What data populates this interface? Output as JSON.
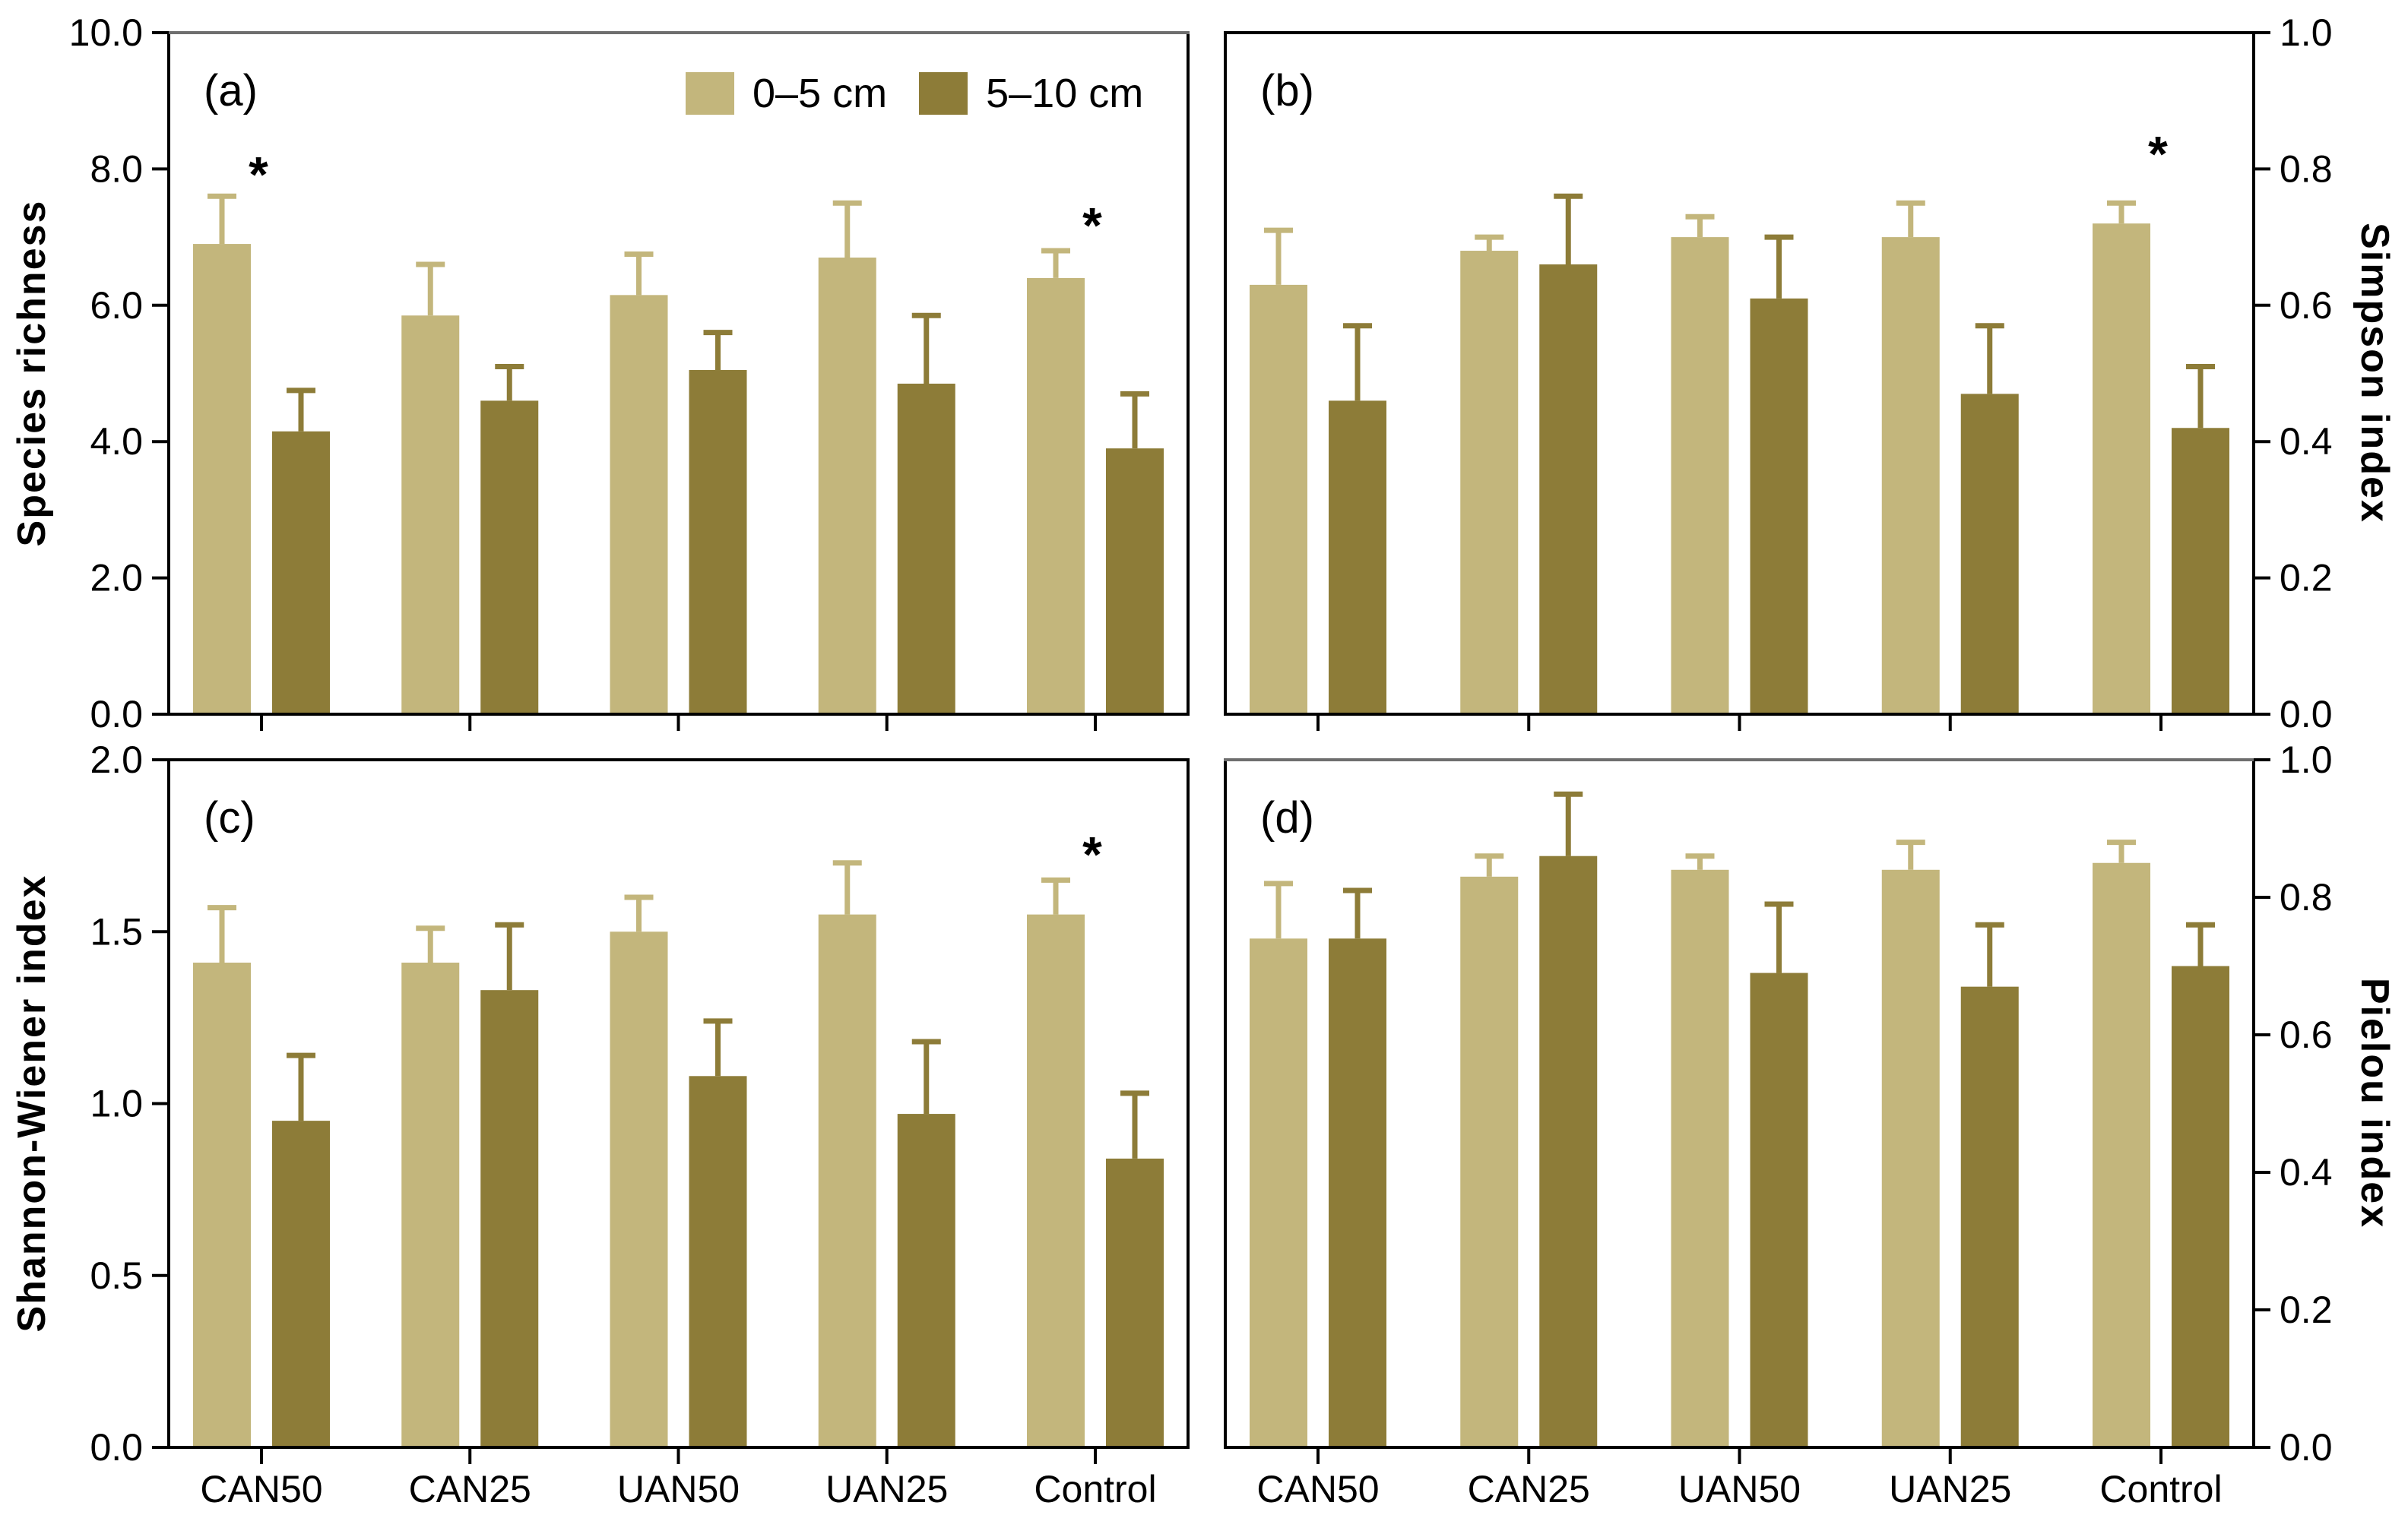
{
  "legend": {
    "items": [
      {
        "label": "0–5 cm",
        "color": "#c3b67c"
      },
      {
        "label": "5–10 cm",
        "color": "#8d7c38"
      }
    ]
  },
  "categories": [
    "CAN50",
    "CAN25",
    "UAN50",
    "UAN25",
    "Control"
  ],
  "significance_symbol": "*",
  "chart_data": [
    {
      "id": "a",
      "type": "bar",
      "letter": "(a)",
      "ylabel": "Species richness",
      "axis_side": "left",
      "ylim": [
        0,
        10
      ],
      "yticks": [
        0,
        2,
        4,
        6,
        8,
        10
      ],
      "ytick_labels": [
        "0.0",
        "2.0",
        "4.0",
        "6.0",
        "8.0",
        "10.0"
      ],
      "categories": [
        "CAN50",
        "CAN25",
        "UAN50",
        "UAN25",
        "Control"
      ],
      "series": [
        {
          "name": "0–5 cm",
          "color": "#c3b67c",
          "values": [
            6.9,
            5.85,
            6.15,
            6.7,
            6.4
          ],
          "errors": [
            0.7,
            0.75,
            0.6,
            0.8,
            0.4
          ]
        },
        {
          "name": "5–10 cm",
          "color": "#8d7c38",
          "values": [
            4.15,
            4.6,
            5.05,
            4.85,
            3.9
          ],
          "errors": [
            0.6,
            0.5,
            0.55,
            1.0,
            0.8
          ]
        }
      ],
      "annotations": [
        {
          "category": "CAN50",
          "symbol": "*",
          "y": 8.0
        },
        {
          "category": "Control",
          "symbol": "*",
          "y": 7.25
        }
      ]
    },
    {
      "id": "b",
      "type": "bar",
      "letter": "(b)",
      "ylabel": "Simpson index",
      "axis_side": "right",
      "ylim": [
        0,
        1.0
      ],
      "yticks": [
        0,
        0.2,
        0.4,
        0.6,
        0.8,
        1.0
      ],
      "ytick_labels": [
        "0.0",
        "0.2",
        "0.4",
        "0.6",
        "0.8",
        "1.0"
      ],
      "categories": [
        "CAN50",
        "CAN25",
        "UAN50",
        "UAN25",
        "Control"
      ],
      "series": [
        {
          "name": "0–5 cm",
          "color": "#c3b67c",
          "values": [
            0.63,
            0.68,
            0.7,
            0.7,
            0.72
          ],
          "errors": [
            0.08,
            0.02,
            0.03,
            0.05,
            0.03
          ]
        },
        {
          "name": "5–10 cm",
          "color": "#8d7c38",
          "values": [
            0.46,
            0.66,
            0.61,
            0.47,
            0.42
          ],
          "errors": [
            0.11,
            0.1,
            0.09,
            0.1,
            0.09
          ]
        }
      ],
      "annotations": [
        {
          "category": "Control",
          "symbol": "*",
          "y": 0.83
        }
      ]
    },
    {
      "id": "c",
      "type": "bar",
      "letter": "(c)",
      "ylabel": "Shannon-Wiener index",
      "axis_side": "left",
      "ylim": [
        0,
        2.0
      ],
      "yticks": [
        0,
        0.5,
        1.0,
        1.5,
        2.0
      ],
      "ytick_labels": [
        "0.0",
        "0.5",
        "1.0",
        "1.5",
        "2.0"
      ],
      "categories": [
        "CAN50",
        "CAN25",
        "UAN50",
        "UAN25",
        "Control"
      ],
      "series": [
        {
          "name": "0–5 cm",
          "color": "#c3b67c",
          "values": [
            1.41,
            1.41,
            1.5,
            1.55,
            1.55
          ],
          "errors": [
            0.16,
            0.1,
            0.1,
            0.15,
            0.1
          ]
        },
        {
          "name": "5–10 cm",
          "color": "#8d7c38",
          "values": [
            0.95,
            1.33,
            1.08,
            0.97,
            0.84
          ],
          "errors": [
            0.19,
            0.19,
            0.16,
            0.21,
            0.19
          ]
        }
      ],
      "annotations": [
        {
          "category": "Control",
          "symbol": "*",
          "y": 1.74
        }
      ]
    },
    {
      "id": "d",
      "type": "bar",
      "letter": "(d)",
      "ylabel": "Pielou index",
      "axis_side": "right",
      "ylim": [
        0,
        1.0
      ],
      "yticks": [
        0,
        0.2,
        0.4,
        0.6,
        0.8,
        1.0
      ],
      "ytick_labels": [
        "0.0",
        "0.2",
        "0.4",
        "0.6",
        "0.8",
        "1.0"
      ],
      "categories": [
        "CAN50",
        "CAN25",
        "UAN50",
        "UAN25",
        "Control"
      ],
      "series": [
        {
          "name": "0–5 cm",
          "color": "#c3b67c",
          "values": [
            0.74,
            0.83,
            0.84,
            0.84,
            0.85
          ],
          "errors": [
            0.08,
            0.03,
            0.02,
            0.04,
            0.03
          ]
        },
        {
          "name": "5–10 cm",
          "color": "#8d7c38",
          "values": [
            0.74,
            0.86,
            0.69,
            0.67,
            0.7
          ],
          "errors": [
            0.07,
            0.09,
            0.1,
            0.09,
            0.06
          ]
        }
      ],
      "annotations": []
    }
  ]
}
